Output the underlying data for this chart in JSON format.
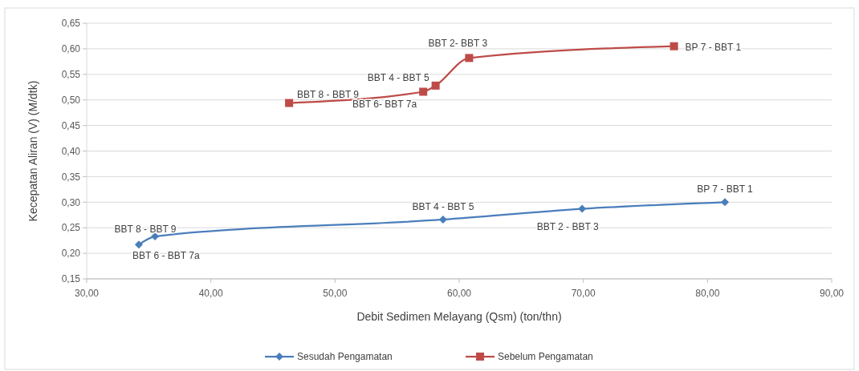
{
  "chart_data": {
    "type": "line",
    "xlabel": "Debit Sedimen Melayang (Qsm) (ton/thn)",
    "ylabel": "Kecepatan Aliran (V) (M/dtk)",
    "xlim": [
      30,
      90
    ],
    "xticks": [
      {
        "value": 30,
        "label": "30,00"
      },
      {
        "value": 40,
        "label": "40,00"
      },
      {
        "value": 50,
        "label": "50,00"
      },
      {
        "value": 60,
        "label": "60,00"
      },
      {
        "value": 70,
        "label": "70,00"
      },
      {
        "value": 80,
        "label": "80,00"
      },
      {
        "value": 90,
        "label": "90,00"
      }
    ],
    "ylim": [
      0.15,
      0.65
    ],
    "yticks": [
      {
        "value": 0.15,
        "label": "0,15"
      },
      {
        "value": 0.2,
        "label": "0,20"
      },
      {
        "value": 0.25,
        "label": "0,25"
      },
      {
        "value": 0.3,
        "label": "0,30"
      },
      {
        "value": 0.35,
        "label": "0,35"
      },
      {
        "value": 0.4,
        "label": "0,40"
      },
      {
        "value": 0.45,
        "label": "0,45"
      },
      {
        "value": 0.5,
        "label": "0,50"
      },
      {
        "value": 0.55,
        "label": "0,55"
      },
      {
        "value": 0.6,
        "label": "0,60"
      },
      {
        "value": 0.65,
        "label": "0,65"
      }
    ],
    "grid": "y",
    "legend": "bottom",
    "series": [
      {
        "name": "Sesudah Pengamatan",
        "color": "#4a7ebb",
        "marker": "diamond",
        "x": [
          34.2,
          35.5,
          58.7,
          69.9,
          81.4
        ],
        "values": [
          0.217,
          0.233,
          0.266,
          0.287,
          0.3
        ]
      },
      {
        "name": "Sebelum Pengamatan",
        "color": "#be4b48",
        "marker": "square",
        "x": [
          46.3,
          57.1,
          58.1,
          60.8,
          77.3
        ],
        "values": [
          0.494,
          0.516,
          0.528,
          0.582,
          0.605
        ]
      }
    ],
    "annotations": [
      {
        "text": "BBT 6 - BBT 7a",
        "x": 34.2,
        "y": 0.217
      },
      {
        "text": "BBT 8 - BBT 9",
        "x": 35.5,
        "y": 0.233
      },
      {
        "text": "BBT 4 - BBT 5",
        "x": 58.7,
        "y": 0.266
      },
      {
        "text": "BBT 2 - BBT 3",
        "x": 69.9,
        "y": 0.287
      },
      {
        "text": "BP 7 - BBT 1",
        "x": 81.4,
        "y": 0.3
      },
      {
        "text": "BBT 8 - BBT 9",
        "x": 46.3,
        "y": 0.494
      },
      {
        "text": "BBT 6- BBT 7a",
        "x": 57.1,
        "y": 0.516
      },
      {
        "text": "BBT 4 - BBT 5",
        "x": 58.1,
        "y": 0.528
      },
      {
        "text": "BBT 2- BBT 3",
        "x": 60.8,
        "y": 0.582
      },
      {
        "text": "BP 7 - BBT 1",
        "x": 77.3,
        "y": 0.605
      }
    ]
  }
}
